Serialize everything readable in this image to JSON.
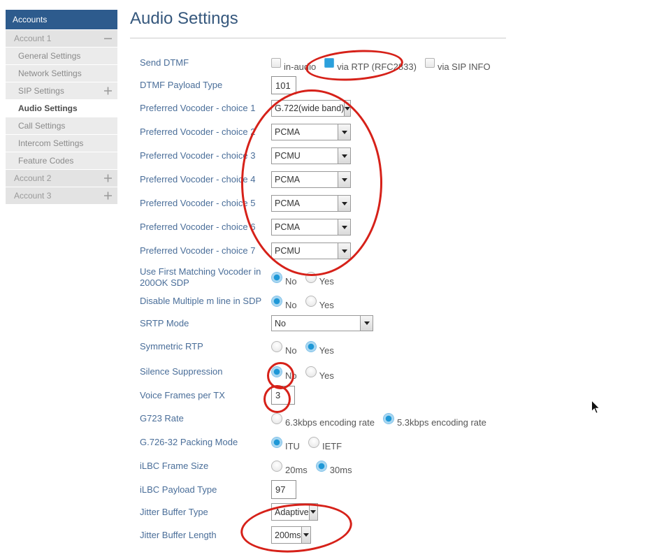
{
  "sidebar": {
    "header": "Accounts",
    "items": [
      {
        "label": "Account 1",
        "type": "account",
        "icon": "minus"
      },
      {
        "label": "General Settings",
        "type": "sub"
      },
      {
        "label": "Network Settings",
        "type": "sub"
      },
      {
        "label": "SIP Settings",
        "type": "sub",
        "icon": "plus"
      },
      {
        "label": "Audio Settings",
        "type": "sub",
        "active": true
      },
      {
        "label": "Call Settings",
        "type": "sub"
      },
      {
        "label": "Intercom Settings",
        "type": "sub"
      },
      {
        "label": "Feature Codes",
        "type": "sub"
      },
      {
        "label": "Account 2",
        "type": "account",
        "icon": "plus"
      },
      {
        "label": "Account 3",
        "type": "account",
        "icon": "plus"
      }
    ]
  },
  "main": {
    "title": "Audio Settings",
    "rows": [
      {
        "id": "send-dtmf",
        "label": "Send DTMF",
        "control": {
          "type": "checkbox-group",
          "options": [
            {
              "label": "in-audio",
              "checked": false
            },
            {
              "label": "via RTP (RFC2833)",
              "checked": true
            },
            {
              "label": "via SIP INFO",
              "checked": false
            }
          ]
        }
      },
      {
        "id": "dtmf-payload-type",
        "label": "DTMF Payload Type",
        "control": {
          "type": "text",
          "value": "101"
        }
      },
      {
        "id": "vocoder-1",
        "label": "Preferred Vocoder - choice 1",
        "control": {
          "type": "select",
          "value": "G.722(wide band)"
        }
      },
      {
        "id": "vocoder-2",
        "label": "Preferred Vocoder - choice 2",
        "control": {
          "type": "select",
          "value": "PCMA"
        }
      },
      {
        "id": "vocoder-3",
        "label": "Preferred Vocoder - choice 3",
        "control": {
          "type": "select",
          "value": "PCMU"
        }
      },
      {
        "id": "vocoder-4",
        "label": "Preferred Vocoder - choice 4",
        "control": {
          "type": "select",
          "value": "PCMA"
        }
      },
      {
        "id": "vocoder-5",
        "label": "Preferred Vocoder - choice 5",
        "control": {
          "type": "select",
          "value": "PCMA"
        }
      },
      {
        "id": "vocoder-6",
        "label": "Preferred Vocoder - choice 6",
        "control": {
          "type": "select",
          "value": "PCMA"
        }
      },
      {
        "id": "vocoder-7",
        "label": "Preferred Vocoder - choice 7",
        "control": {
          "type": "select",
          "value": "PCMU"
        }
      },
      {
        "id": "use-first-matching",
        "label": "Use First Matching Vocoder in 200OK SDP",
        "control": {
          "type": "radio-group",
          "options": [
            {
              "label": "No",
              "checked": true
            },
            {
              "label": "Yes",
              "checked": false
            }
          ]
        }
      },
      {
        "id": "disable-multiple-m-line",
        "label": "Disable Multiple m line in SDP",
        "control": {
          "type": "radio-group",
          "options": [
            {
              "label": "No",
              "checked": true
            },
            {
              "label": "Yes",
              "checked": false
            }
          ]
        }
      },
      {
        "id": "srtp-mode",
        "label": "SRTP Mode",
        "control": {
          "type": "select",
          "value": "No"
        }
      },
      {
        "id": "symmetric-rtp",
        "label": "Symmetric RTP",
        "control": {
          "type": "radio-group",
          "options": [
            {
              "label": "No",
              "checked": false
            },
            {
              "label": "Yes",
              "checked": true
            }
          ]
        }
      },
      {
        "id": "silence-suppression",
        "label": "Silence Suppression",
        "control": {
          "type": "radio-group",
          "options": [
            {
              "label": "No",
              "checked": true
            },
            {
              "label": "Yes",
              "checked": false
            }
          ]
        }
      },
      {
        "id": "voice-frames-per-tx",
        "label": "Voice Frames per TX",
        "control": {
          "type": "text",
          "value": "3"
        }
      },
      {
        "id": "g723-rate",
        "label": "G723 Rate",
        "control": {
          "type": "radio-group",
          "options": [
            {
              "label": "6.3kbps encoding rate",
              "checked": false
            },
            {
              "label": "5.3kbps encoding rate",
              "checked": true
            }
          ]
        }
      },
      {
        "id": "g726-32-packing-mode",
        "label": "G.726-32 Packing Mode",
        "control": {
          "type": "radio-group",
          "options": [
            {
              "label": "ITU",
              "checked": true
            },
            {
              "label": "IETF",
              "checked": false
            }
          ]
        }
      },
      {
        "id": "ilbc-frame-size",
        "label": "iLBC Frame Size",
        "control": {
          "type": "radio-group",
          "options": [
            {
              "label": "20ms",
              "checked": false
            },
            {
              "label": "30ms",
              "checked": true
            }
          ]
        }
      },
      {
        "id": "ilbc-payload-type",
        "label": "iLBC Payload Type",
        "control": {
          "type": "text",
          "value": "97"
        }
      },
      {
        "id": "jitter-buffer-type",
        "label": "Jitter Buffer Type",
        "control": {
          "type": "select",
          "value": "Adaptive"
        }
      },
      {
        "id": "jitter-buffer-length",
        "label": "Jitter Buffer Length",
        "control": {
          "type": "select",
          "value": "200ms"
        }
      }
    ]
  },
  "annotations": {
    "color": "#d62119",
    "highlighted": [
      "via RTP (RFC2833) checkbox",
      "Preferred Vocoder choices 1-7 dropdowns",
      "Silence Suppression No radio",
      "Voice Frames per TX value",
      "Jitter Buffer Type and Jitter Buffer Length dropdowns"
    ]
  }
}
